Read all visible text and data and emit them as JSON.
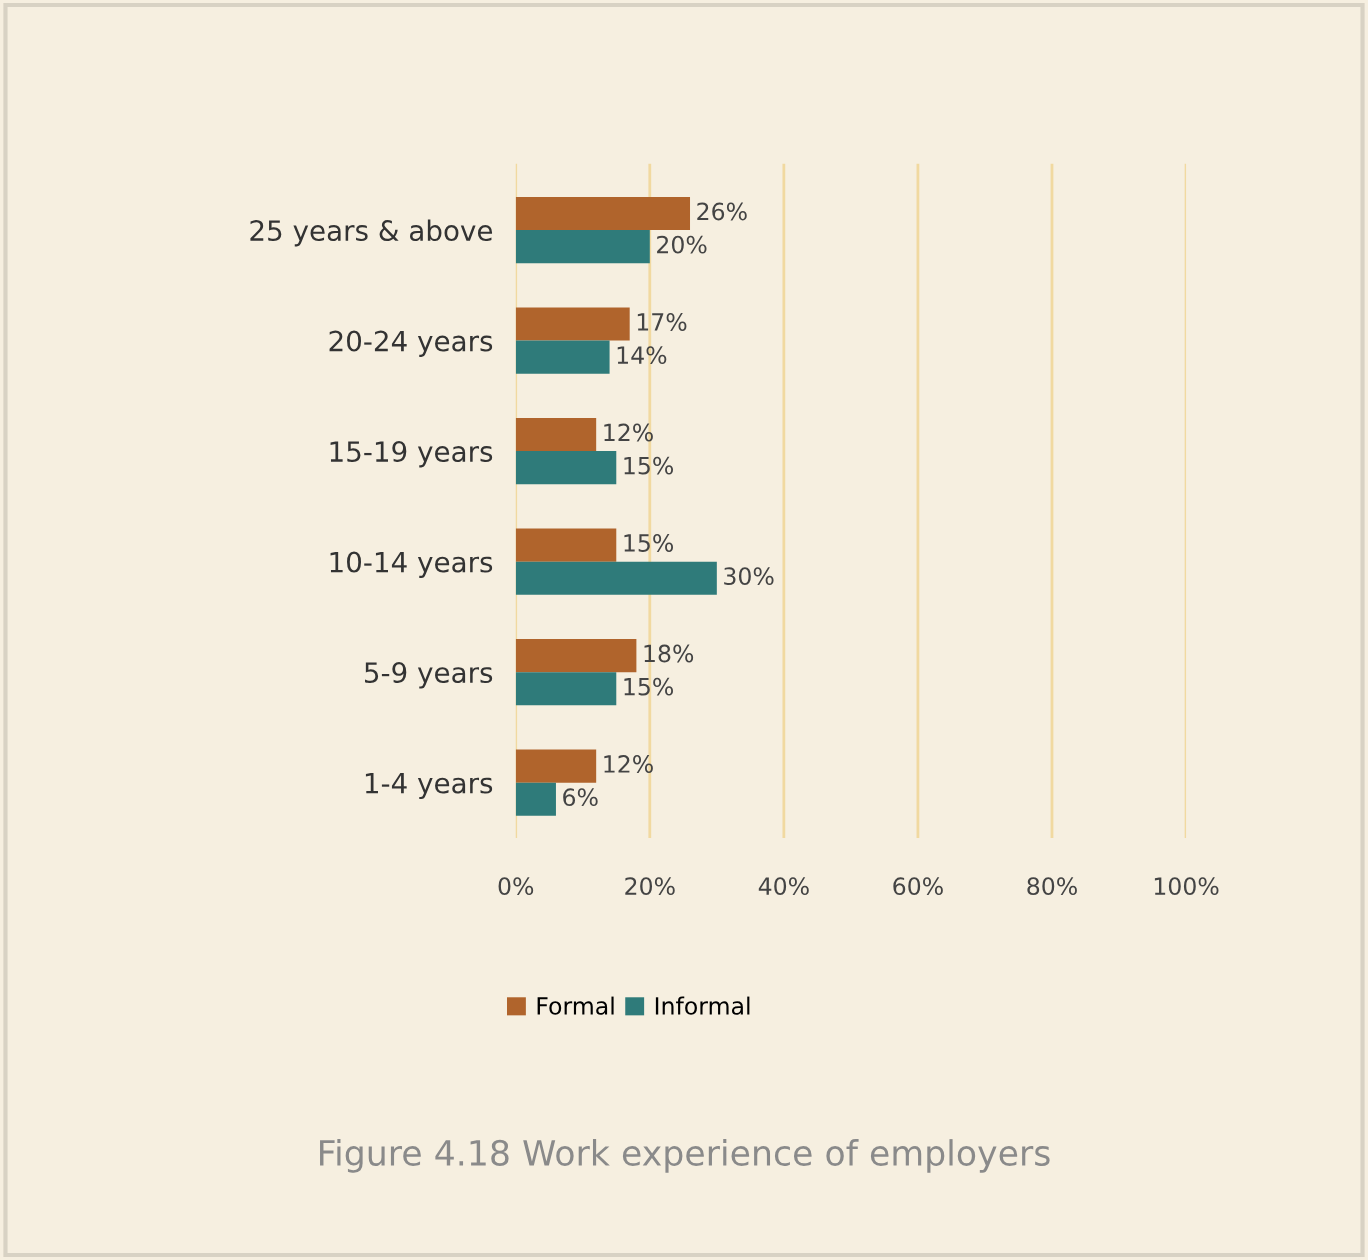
{
  "chart_data": {
    "type": "bar",
    "orientation": "horizontal",
    "title": "Figure 4.18 Work experience of employers",
    "categories": [
      "25 years & above",
      "20-24 years",
      "15-19 years",
      "10-14 years",
      "5-9 years",
      "1-4 years"
    ],
    "series": [
      {
        "name": "Formal",
        "color": "#b0642c",
        "values": [
          26,
          17,
          12,
          15,
          18,
          12
        ],
        "value_labels": [
          "26%",
          "17%",
          "12%",
          "15%",
          "18%",
          "12%"
        ]
      },
      {
        "name": "Informal",
        "color": "#2f7b7a",
        "values": [
          20,
          14,
          15,
          30,
          15,
          6
        ],
        "value_labels": [
          "20%",
          "14%",
          "15%",
          "30%",
          "15%",
          "6%"
        ]
      }
    ],
    "xlim": [
      0,
      100
    ],
    "xticks": [
      {
        "value": 0,
        "label": "0%"
      },
      {
        "value": 20,
        "label": "20%"
      },
      {
        "value": 40,
        "label": "40%"
      },
      {
        "value": 60,
        "label": "60%"
      },
      {
        "value": 80,
        "label": "80%"
      },
      {
        "value": 100,
        "label": "100%"
      }
    ],
    "grid": "x",
    "legend": "bottom"
  }
}
